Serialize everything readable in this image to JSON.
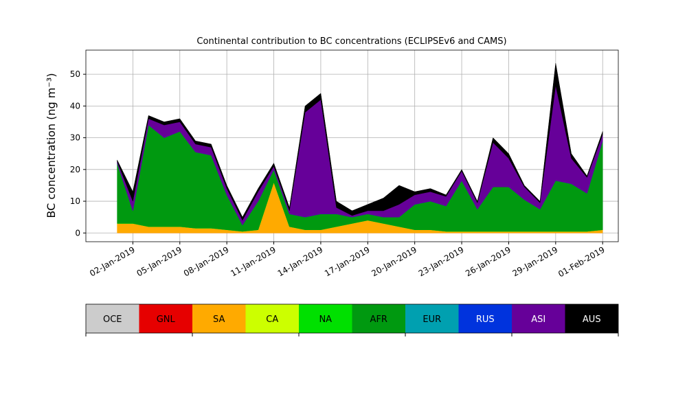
{
  "chart_data": {
    "type": "area",
    "stacked": true,
    "title": "Continental contribution to BC concentrations (ECLIPSEv6 and CAMS)",
    "y_label": "BC concentration (ng m⁻³)",
    "x": [
      "2019-01-01",
      "2019-01-02",
      "2019-01-03",
      "2019-01-04",
      "2019-01-05",
      "2019-01-06",
      "2019-01-07",
      "2019-01-08",
      "2019-01-09",
      "2019-01-10",
      "2019-01-11",
      "2019-01-12",
      "2019-01-13",
      "2019-01-14",
      "2019-01-15",
      "2019-01-16",
      "2019-01-17",
      "2019-01-18",
      "2019-01-19",
      "2019-01-20",
      "2019-01-21",
      "2019-01-22",
      "2019-01-23",
      "2019-01-24",
      "2019-01-25",
      "2019-01-26",
      "2019-01-27",
      "2019-01-28",
      "2019-01-29",
      "2019-01-30",
      "2019-01-31",
      "2019-02-01"
    ],
    "series": [
      {
        "name": "OCE",
        "color": "#cccccc",
        "values": [
          0,
          0,
          0,
          0,
          0,
          0,
          0,
          0,
          0,
          0,
          0,
          0,
          0,
          0,
          0,
          0,
          0,
          0,
          0,
          0,
          0,
          0,
          0,
          0,
          0,
          0,
          0,
          0,
          0,
          0,
          0,
          0
        ]
      },
      {
        "name": "GNL",
        "color": "#e60000",
        "values": [
          0,
          0,
          0,
          0,
          0,
          0,
          0,
          0,
          0,
          0,
          0,
          0,
          0,
          0,
          0,
          0,
          0,
          0,
          0,
          0,
          0,
          0,
          0,
          0,
          0,
          0,
          0,
          0,
          0,
          0,
          0,
          0
        ]
      },
      {
        "name": "SA",
        "color": "#ffaa00",
        "values": [
          3,
          3,
          2,
          2,
          2,
          1.5,
          1.5,
          1,
          0.5,
          1,
          16,
          2,
          1,
          1,
          2,
          3,
          4,
          3,
          2,
          1,
          1,
          0.5,
          0.5,
          0.5,
          0.5,
          0.5,
          0.5,
          0.5,
          0.5,
          0.5,
          0.5,
          1
        ]
      },
      {
        "name": "CA",
        "color": "#ccff00",
        "values": [
          0,
          0,
          0,
          0,
          0,
          0,
          0,
          0,
          0,
          0,
          0,
          0,
          0,
          0,
          0,
          0,
          0,
          0,
          0,
          0,
          0,
          0,
          0,
          0,
          0,
          0,
          0,
          0,
          0,
          0,
          0,
          0
        ]
      },
      {
        "name": "NA",
        "color": "#00e000",
        "values": [
          0,
          0,
          0,
          0,
          0,
          0,
          0,
          0,
          0,
          0,
          0,
          0,
          0,
          0,
          0,
          0,
          0,
          0,
          0,
          0,
          0,
          0,
          0,
          0,
          0,
          0,
          0,
          0,
          0,
          0,
          0,
          0
        ]
      },
      {
        "name": "AFR",
        "color": "#009910",
        "values": [
          19,
          4,
          32,
          28,
          30,
          24,
          23,
          11,
          2,
          9,
          4,
          4,
          4,
          5,
          4,
          2,
          2,
          2,
          3,
          8,
          9,
          8,
          16,
          7,
          14,
          14,
          10,
          7,
          16,
          15,
          12,
          28
        ]
      },
      {
        "name": "EUR",
        "color": "#00a0b0",
        "values": [
          0,
          0,
          0,
          0,
          0,
          0,
          0,
          0,
          0,
          0,
          0,
          0,
          0,
          0,
          0,
          0,
          0,
          0,
          0,
          0,
          0,
          0,
          0,
          0,
          0,
          0,
          0,
          0,
          0,
          0,
          0,
          0
        ]
      },
      {
        "name": "RUS",
        "color": "#0033dd",
        "values": [
          0,
          0,
          0,
          0,
          0,
          0,
          0,
          0,
          0,
          0,
          0,
          0,
          0,
          0,
          0,
          0,
          0,
          0,
          0,
          0,
          0,
          0,
          0,
          0,
          0,
          0,
          0,
          0,
          0,
          0,
          0,
          0
        ]
      },
      {
        "name": "ASI",
        "color": "#660099",
        "values": [
          0.5,
          3,
          2,
          4,
          3,
          2.5,
          2.5,
          2,
          1.5,
          3,
          1,
          1,
          33,
          36,
          2,
          0.5,
          1,
          2,
          4,
          3,
          3,
          3,
          3,
          2,
          14,
          9,
          4,
          2,
          30,
          8,
          5,
          2
        ]
      },
      {
        "name": "AUS",
        "color": "#000000",
        "values": [
          0.5,
          3,
          1,
          1,
          1,
          1,
          1,
          1,
          1,
          1,
          1,
          1,
          2,
          2,
          2,
          1.5,
          2,
          4,
          6,
          1,
          1,
          0.5,
          0.5,
          0.5,
          1.5,
          1.5,
          0.5,
          0.5,
          7,
          1.5,
          0.5,
          1
        ]
      }
    ],
    "xlim": [
      "2018-12-30",
      "2019-02-02"
    ],
    "xticks": [
      {
        "value": "2019-01-02",
        "label": "02-Jan-2019"
      },
      {
        "value": "2019-01-05",
        "label": "05-Jan-2019"
      },
      {
        "value": "2019-01-08",
        "label": "08-Jan-2019"
      },
      {
        "value": "2019-01-11",
        "label": "11-Jan-2019"
      },
      {
        "value": "2019-01-14",
        "label": "14-Jan-2019"
      },
      {
        "value": "2019-01-17",
        "label": "17-Jan-2019"
      },
      {
        "value": "2019-01-20",
        "label": "20-Jan-2019"
      },
      {
        "value": "2019-01-23",
        "label": "23-Jan-2019"
      },
      {
        "value": "2019-01-26",
        "label": "26-Jan-2019"
      },
      {
        "value": "2019-01-29",
        "label": "29-Jan-2019"
      },
      {
        "value": "2019-02-01",
        "label": "01-Feb-2019"
      }
    ],
    "ylim": [
      -2.75,
      57.6
    ],
    "yticks": [
      0,
      10,
      20,
      30,
      40,
      50
    ],
    "grid": true,
    "legend": "bottom"
  }
}
